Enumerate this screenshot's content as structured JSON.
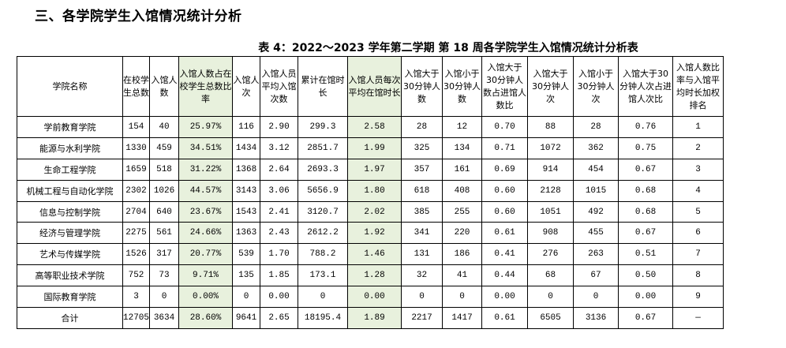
{
  "section_heading": "三、各学院学生入馆情况统计分析",
  "table_caption": "表 4：2022～2023 学年第二学期 第 18 周各学院学生入馆情况统计分析表",
  "columns": [
    "学院名称",
    "在校学生总数",
    "入馆人数",
    "入馆人数占在校学生总数比率",
    "入馆人次",
    "入馆人员平均入馆次数",
    "累计在馆时长",
    "入馆人员每次平均在馆时长",
    "入馆大于30分钟人数",
    "入馆小于30分钟人数",
    "入馆大于30分钟人数占进馆人数比",
    "入馆大于30分钟人次",
    "入馆小于30分钟人次",
    "入馆大于30分钟人次占进馆人次比",
    "入馆人数比率与入馆平均时长加权排名"
  ],
  "rows": [
    [
      "学前教育学院",
      "154",
      "40",
      "25.97%",
      "116",
      "2.90",
      "299.3",
      "2.58",
      "28",
      "12",
      "0.70",
      "88",
      "28",
      "0.76",
      "1"
    ],
    [
      "能源与水利学院",
      "1330",
      "459",
      "34.51%",
      "1434",
      "3.12",
      "2851.7",
      "1.99",
      "325",
      "134",
      "0.71",
      "1072",
      "362",
      "0.75",
      "2"
    ],
    [
      "生命工程学院",
      "1659",
      "518",
      "31.22%",
      "1368",
      "2.64",
      "2693.3",
      "1.97",
      "357",
      "161",
      "0.69",
      "914",
      "454",
      "0.67",
      "3"
    ],
    [
      "机械工程与自动化学院",
      "2302",
      "1026",
      "44.57%",
      "3143",
      "3.06",
      "5656.9",
      "1.80",
      "618",
      "408",
      "0.60",
      "2128",
      "1015",
      "0.68",
      "4"
    ],
    [
      "信息与控制学院",
      "2704",
      "640",
      "23.67%",
      "1543",
      "2.41",
      "3120.7",
      "2.02",
      "385",
      "255",
      "0.60",
      "1051",
      "492",
      "0.68",
      "5"
    ],
    [
      "经济与管理学院",
      "2275",
      "561",
      "24.66%",
      "1363",
      "2.43",
      "2612.2",
      "1.92",
      "341",
      "220",
      "0.61",
      "908",
      "455",
      "0.67",
      "6"
    ],
    [
      "艺术与传媒学院",
      "1526",
      "317",
      "20.77%",
      "539",
      "1.70",
      "788.2",
      "1.46",
      "131",
      "186",
      "0.41",
      "276",
      "263",
      "0.51",
      "7"
    ],
    [
      "高等职业技术学院",
      "752",
      "73",
      "9.71%",
      "135",
      "1.85",
      "173.1",
      "1.28",
      "32",
      "41",
      "0.44",
      "68",
      "67",
      "0.50",
      "8"
    ],
    [
      "国际教育学院",
      "3",
      "0",
      "0.00%",
      "0",
      "0.00",
      "0",
      "0.00",
      "0",
      "0",
      "0.00",
      "0",
      "0",
      "0.00",
      "9"
    ],
    [
      "合计",
      "12705",
      "3634",
      "28.60%",
      "9641",
      "2.65",
      "18195.4",
      "1.89",
      "2217",
      "1417",
      "0.61",
      "6505",
      "3136",
      "0.67",
      "—"
    ]
  ],
  "colors": {
    "highlight": "#e8f1dd"
  }
}
